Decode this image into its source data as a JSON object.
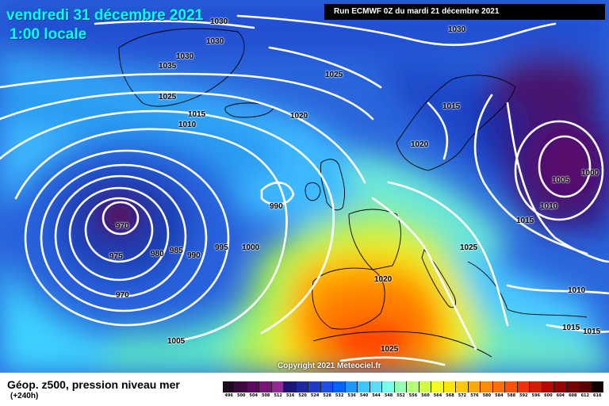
{
  "header": {
    "date_title": "vendredi 31 décembre 2021",
    "time_title": "1:00 locale",
    "run_label": "Run ECMWF 0Z du mardi 21 décembre 2021"
  },
  "map": {
    "copyright": "Copyright 2021 Meteociel.fr",
    "isobar_labels": [
      "1030",
      "1030",
      "1030",
      "1035",
      "1030",
      "1025",
      "1025",
      "1015",
      "1010",
      "1020",
      "1020",
      "1015",
      "1005",
      "1000",
      "1010",
      "990",
      "970",
      "975",
      "980",
      "985",
      "990",
      "995",
      "1000",
      "970",
      "1025",
      "1015",
      "1020",
      "1010",
      "1005",
      "1025",
      "1015",
      "1015"
    ]
  },
  "legend": {
    "variable_title": "Géop. z500, pression niveau mer",
    "lead_time": "(+240h)",
    "scale_values": [
      "496",
      "500",
      "504",
      "508",
      "512",
      "516",
      "520",
      "524",
      "528",
      "532",
      "536",
      "540",
      "544",
      "548",
      "552",
      "556",
      "560",
      "564",
      "568",
      "572",
      "576",
      "580",
      "584",
      "588",
      "592",
      "596",
      "600",
      "604",
      "608",
      "612",
      "616"
    ],
    "scale_colors": [
      "#1e0a1e",
      "#3c0a3c",
      "#5a0a5a",
      "#781478",
      "#962896",
      "#1e1478",
      "#1e28a0",
      "#1e3cc8",
      "#1e50e6",
      "#0064ff",
      "#1e96ff",
      "#3cc8ff",
      "#5adcff",
      "#78ffe6",
      "#96ffb4",
      "#b4ff78",
      "#d2ff3c",
      "#f0ff1e",
      "#ffe600",
      "#ffc800",
      "#ffaa00",
      "#ff8c00",
      "#ff6e00",
      "#ff5000",
      "#f03200",
      "#d21e00",
      "#b40a00",
      "#960000",
      "#780000",
      "#5a0000",
      "#140000"
    ]
  }
}
